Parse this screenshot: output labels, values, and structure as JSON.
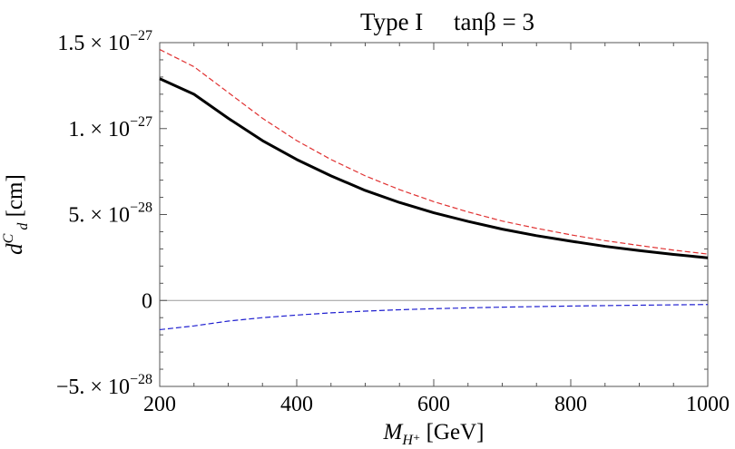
{
  "chart_data": {
    "type": "line",
    "title": "Type I     tanβ = 3",
    "xlabel": "M_{H⁺} [GeV]",
    "xlabel_main": "M",
    "xlabel_sub": "H⁺",
    "xlabel_unit": "[GeV]",
    "ylabel_main": "d",
    "ylabel_sup": "C",
    "ylabel_sub": "d",
    "ylabel_unit": "[cm]",
    "xlim": [
      200,
      1000
    ],
    "ylim": [
      -5e-28,
      1.5e-27
    ],
    "x_ticks": [
      {
        "value": 200,
        "label": "200"
      },
      {
        "value": 400,
        "label": "400"
      },
      {
        "value": 600,
        "label": "600"
      },
      {
        "value": 800,
        "label": "800"
      },
      {
        "value": 1000,
        "label": "1000"
      }
    ],
    "y_ticks": [
      {
        "value": -5e-28,
        "mantissa": "−5.",
        "times": " × 10",
        "exp": "−28"
      },
      {
        "value": 0,
        "mantissa": "0",
        "times": "",
        "exp": ""
      },
      {
        "value": 5e-28,
        "mantissa": "5.",
        "times": " × 10",
        "exp": "−28"
      },
      {
        "value": 1e-27,
        "mantissa": "1.",
        "times": " × 10",
        "exp": "−27"
      },
      {
        "value": 1.5e-27,
        "mantissa": "1.5",
        "times": " × 10",
        "exp": "−27"
      }
    ],
    "x": [
      200,
      250,
      300,
      350,
      400,
      450,
      500,
      550,
      600,
      650,
      700,
      750,
      800,
      850,
      900,
      950,
      1000
    ],
    "series": [
      {
        "style": "solid",
        "color": "#000000",
        "values": [
          1.29e-27,
          1.2e-27,
          1.06e-27,
          9.3e-28,
          8.2e-28,
          7.25e-28,
          6.4e-28,
          5.7e-28,
          5.1e-28,
          4.6e-28,
          4.15e-28,
          3.77e-28,
          3.45e-28,
          3.15e-28,
          2.9e-28,
          2.68e-28,
          2.48e-28
        ]
      },
      {
        "style": "dashed",
        "color": "#e03030",
        "values": [
          1.46e-27,
          1.36e-27,
          1.21e-27,
          1.06e-27,
          9.3e-28,
          8.2e-28,
          7.25e-28,
          6.45e-28,
          5.75e-28,
          5.15e-28,
          4.62e-28,
          4.2e-28,
          3.82e-28,
          3.48e-28,
          3.2e-28,
          2.93e-28,
          2.7e-28
        ]
      },
      {
        "style": "dashed",
        "color": "#2020d0",
        "values": [
          -1.7e-28,
          -1.48e-28,
          -1.2e-28,
          -1e-28,
          -8.5e-29,
          -7.2e-29,
          -6.2e-29,
          -5.4e-29,
          -4.8e-29,
          -4.3e-29,
          -3.9e-29,
          -3.55e-29,
          -3.25e-29,
          -3e-29,
          -2.75e-29,
          -2.55e-29,
          -2.35e-29
        ]
      }
    ],
    "grid": false,
    "zero_line": true
  }
}
